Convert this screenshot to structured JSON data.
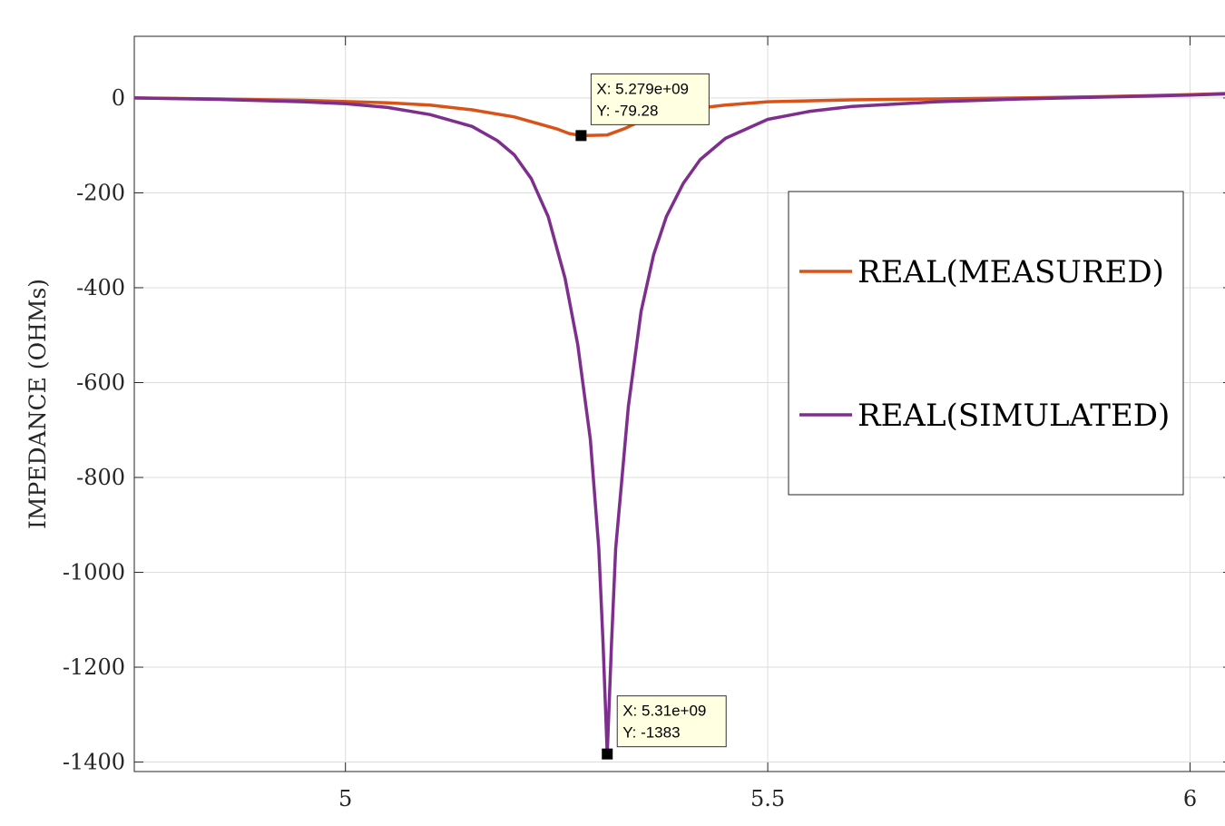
{
  "chart_data": {
    "type": "line",
    "ylabel": "IMPEDANCE (OHMs)",
    "xlabel": "",
    "xlim": [
      4.75,
      6.05
    ],
    "ylim": [
      -1420,
      130
    ],
    "grid": true,
    "x_ticks": [
      {
        "value": 5,
        "label": "5"
      },
      {
        "value": 5.5,
        "label": "5.5"
      },
      {
        "value": 6,
        "label": "6"
      }
    ],
    "y_ticks": [
      {
        "value": 0,
        "label": "0"
      },
      {
        "value": -200,
        "label": "-200"
      },
      {
        "value": -400,
        "label": "-400"
      },
      {
        "value": -600,
        "label": "-600"
      },
      {
        "value": -800,
        "label": "-800"
      },
      {
        "value": -1000,
        "label": "-1000"
      },
      {
        "value": -1200,
        "label": "-1200"
      },
      {
        "value": -1400,
        "label": "-1400"
      }
    ],
    "legend_position": "right",
    "series": [
      {
        "name": "REAL(MEASURED)",
        "color": "#d95319",
        "points": [
          [
            4.75,
            0
          ],
          [
            4.85,
            -2
          ],
          [
            4.95,
            -5
          ],
          [
            5.05,
            -10
          ],
          [
            5.1,
            -15
          ],
          [
            5.15,
            -25
          ],
          [
            5.2,
            -40
          ],
          [
            5.23,
            -55
          ],
          [
            5.25,
            -65
          ],
          [
            5.265,
            -75
          ],
          [
            5.279,
            -79.28
          ],
          [
            5.31,
            -78
          ],
          [
            5.33,
            -65
          ],
          [
            5.36,
            -40
          ],
          [
            5.4,
            -25
          ],
          [
            5.45,
            -15
          ],
          [
            5.5,
            -8
          ],
          [
            5.6,
            -4
          ],
          [
            5.7,
            -2
          ],
          [
            5.8,
            0
          ],
          [
            5.9,
            3
          ],
          [
            6.0,
            7
          ],
          [
            6.05,
            10
          ]
        ]
      },
      {
        "name": "REAL(SIMULATED)",
        "color": "#7e2f8e",
        "points": [
          [
            4.75,
            0
          ],
          [
            4.85,
            -3
          ],
          [
            4.95,
            -8
          ],
          [
            5.0,
            -12
          ],
          [
            5.05,
            -20
          ],
          [
            5.1,
            -35
          ],
          [
            5.15,
            -60
          ],
          [
            5.18,
            -90
          ],
          [
            5.2,
            -120
          ],
          [
            5.22,
            -170
          ],
          [
            5.24,
            -250
          ],
          [
            5.26,
            -380
          ],
          [
            5.275,
            -520
          ],
          [
            5.29,
            -720
          ],
          [
            5.3,
            -950
          ],
          [
            5.305,
            -1150
          ],
          [
            5.31,
            -1383
          ],
          [
            5.315,
            -1150
          ],
          [
            5.32,
            -950
          ],
          [
            5.335,
            -650
          ],
          [
            5.35,
            -450
          ],
          [
            5.365,
            -330
          ],
          [
            5.38,
            -250
          ],
          [
            5.4,
            -180
          ],
          [
            5.42,
            -130
          ],
          [
            5.45,
            -85
          ],
          [
            5.5,
            -45
          ],
          [
            5.55,
            -28
          ],
          [
            5.6,
            -18
          ],
          [
            5.7,
            -8
          ],
          [
            5.8,
            -2
          ],
          [
            5.9,
            2
          ],
          [
            6.0,
            6
          ],
          [
            6.05,
            9
          ]
        ]
      }
    ],
    "datatips": [
      {
        "series": 0,
        "x": 5.279,
        "y": -79.28,
        "label_x": "X: 5.279e+09",
        "label_y": "Y: -79.28"
      },
      {
        "series": 1,
        "x": 5.31,
        "y": -1383,
        "label_x": "X: 5.31e+09",
        "label_y": "Y: -1383"
      }
    ]
  }
}
